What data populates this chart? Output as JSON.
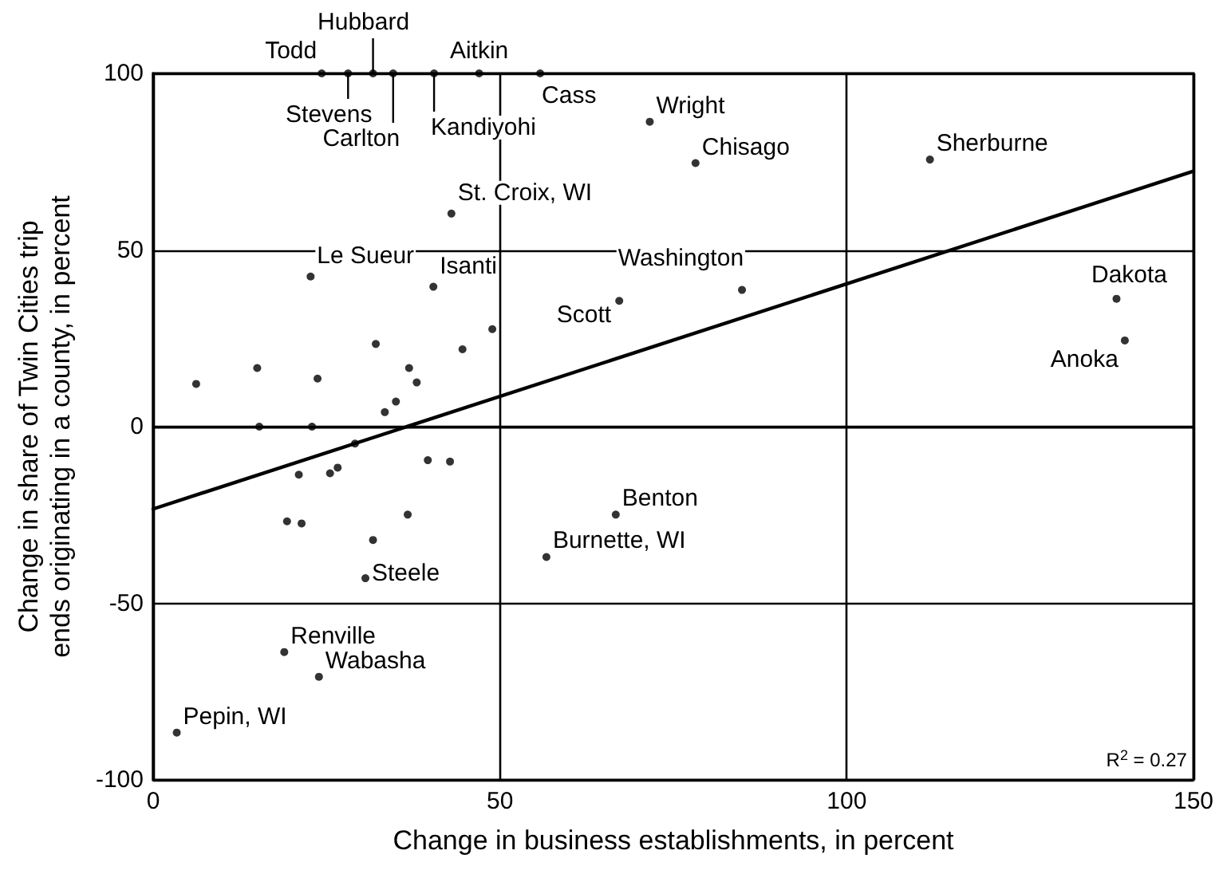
{
  "chart_data": {
    "type": "scatter",
    "xlabel": "Change in business establishments, in percent",
    "ylabel": "Change in share of Twin Cities trip ends originating in a county, in percent",
    "xlim": [
      0,
      150
    ],
    "xticks": [
      0,
      50,
      100,
      150
    ],
    "ylim": [
      -100,
      100
    ],
    "yticks": [
      -100,
      -50,
      0,
      50,
      100
    ],
    "grid": true,
    "marker": "circle",
    "series": [
      {
        "color": "#000000",
        "x": [
          24.3,
          28.1,
          31.7,
          34.6,
          40.5,
          47.0,
          55.8,
          71.6,
          78.2,
          112.0,
          43.0,
          22.7,
          40.4,
          84.9,
          67.2,
          138.9,
          140.1,
          66.7,
          56.7,
          30.6,
          18.9,
          23.9,
          3.4,
          6.2,
          15.0,
          23.7,
          32.1,
          36.9,
          38.0,
          35.0,
          33.4,
          44.6,
          48.9,
          15.3,
          22.9,
          29.1,
          21.0,
          25.5,
          26.6,
          39.6,
          42.8,
          19.3,
          21.4,
          36.7,
          31.7
        ],
        "values": [
          100,
          100,
          100,
          100,
          100,
          100,
          100,
          86.3,
          74.6,
          75.6,
          60.3,
          42.5,
          39.6,
          38.7,
          35.6,
          36.2,
          24.4,
          -24.9,
          -36.9,
          -42.9,
          -63.8,
          -70.8,
          -86.6,
          12.1,
          16.6,
          13.6,
          23.4,
          16.6,
          12.5,
          7.1,
          4.1,
          21.9,
          27.6,
          0,
          0,
          -4.8,
          -13.6,
          -13.2,
          -11.6,
          -9.5,
          -9.9,
          -26.8,
          -27.4,
          -24.9,
          -32.1
        ]
      },
      {
        "type": "line",
        "color": "#000000",
        "marker": "none",
        "x": [
          0,
          150
        ],
        "values": [
          -23.3,
          72.3
        ]
      }
    ],
    "annotations": [
      {
        "text": "Todd",
        "x": 24.3,
        "y": 100
      },
      {
        "text": "Hubbard",
        "x": 31.7,
        "y": 100
      },
      {
        "text": "Aitkin",
        "x": 47.0,
        "y": 100
      },
      {
        "text": "Stevens",
        "x": 28.1,
        "y": 100
      },
      {
        "text": "Carlton",
        "x": 34.6,
        "y": 100
      },
      {
        "text": "Kandiyohi",
        "x": 40.5,
        "y": 100
      },
      {
        "text": "Cass",
        "x": 55.8,
        "y": 100
      },
      {
        "text": "Wright",
        "x": 71.6,
        "y": 86.3
      },
      {
        "text": "Chisago",
        "x": 78.2,
        "y": 74.6
      },
      {
        "text": "Sherburne",
        "x": 112.0,
        "y": 75.6
      },
      {
        "text": "St. Croix, WI",
        "x": 43.0,
        "y": 60.3
      },
      {
        "text": "Le Sueur",
        "x": 22.7,
        "y": 42.5
      },
      {
        "text": "Isanti",
        "x": 40.4,
        "y": 39.6
      },
      {
        "text": "Washington",
        "x": 84.9,
        "y": 38.7
      },
      {
        "text": "Scott",
        "x": 67.2,
        "y": 35.6
      },
      {
        "text": "Dakota",
        "x": 138.9,
        "y": 36.2
      },
      {
        "text": "Anoka",
        "x": 140.1,
        "y": 24.4
      },
      {
        "text": "Benton",
        "x": 66.7,
        "y": -24.9
      },
      {
        "text": "Burnette, WI",
        "x": 56.7,
        "y": -36.9
      },
      {
        "text": "Steele",
        "x": 30.6,
        "y": -42.9
      },
      {
        "text": "Renville",
        "x": 18.9,
        "y": -63.8
      },
      {
        "text": "Wabasha",
        "x": 23.9,
        "y": -70.8
      },
      {
        "text": "Pepin, WI",
        "x": 3.4,
        "y": -86.6
      },
      "R$^{2}$ = 0.27"
    ]
  }
}
